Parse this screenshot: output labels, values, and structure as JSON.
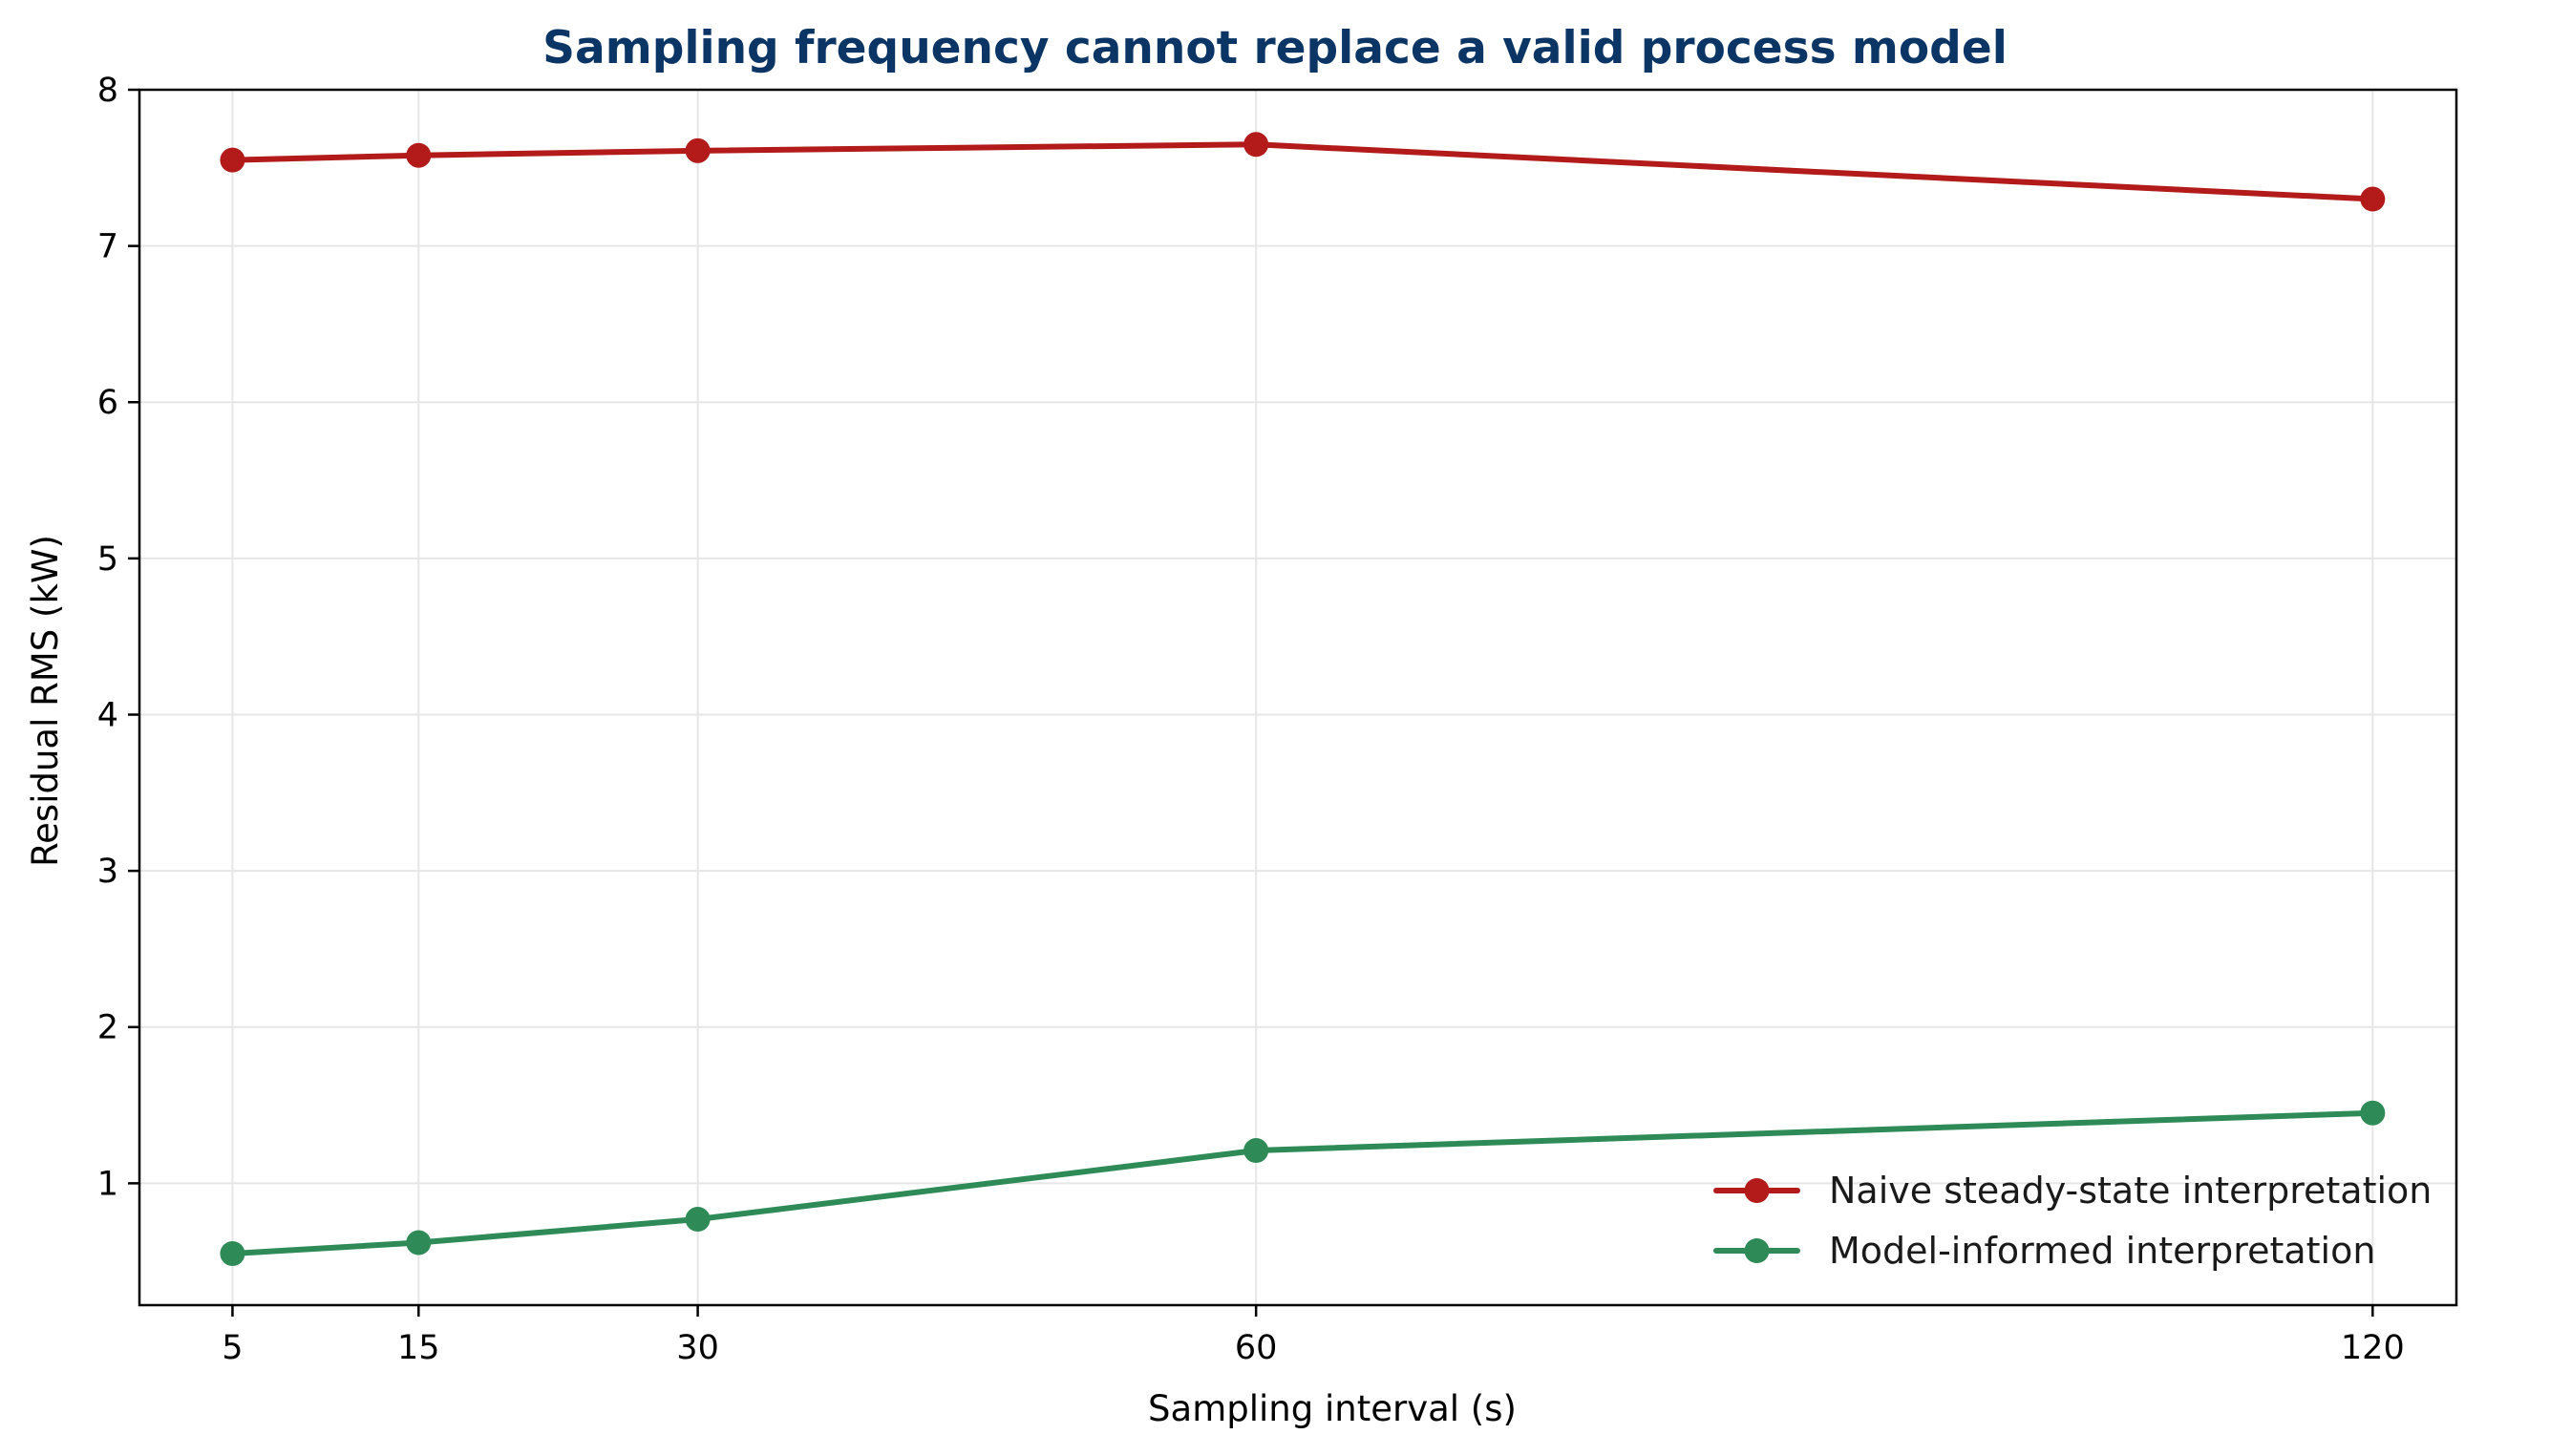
{
  "chart_data": {
    "type": "line",
    "title": "Sampling frequency cannot replace a valid process model",
    "xlabel": "Sampling interval (s)",
    "ylabel": "Residual RMS (kW)",
    "x": [
      5,
      15,
      30,
      60,
      120
    ],
    "xticks": [
      "5",
      "15",
      "30",
      "60",
      "120"
    ],
    "yticks": [
      "1",
      "2",
      "3",
      "4",
      "5",
      "6",
      "7",
      "8"
    ],
    "xlim": [
      0,
      124.5
    ],
    "ylim": [
      0.22,
      8
    ],
    "grid": true,
    "legend_position": "lower-right",
    "series": [
      {
        "name": "Naive steady-state interpretation",
        "values": [
          7.55,
          7.58,
          7.61,
          7.65,
          7.3
        ],
        "color": "#b31b1b"
      },
      {
        "name": "Model-informed interpretation",
        "values": [
          0.55,
          0.62,
          0.77,
          1.21,
          1.45
        ],
        "color": "#2e8b57"
      }
    ]
  },
  "colors": {
    "title": "#0b3565",
    "axis": "#000000",
    "grid": "#e6e6e6"
  }
}
